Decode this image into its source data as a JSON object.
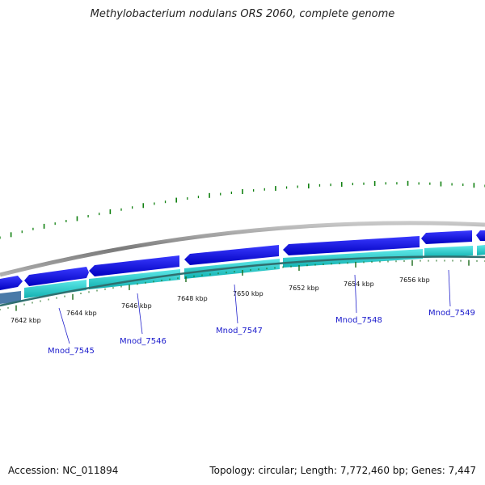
{
  "title": "Methylobacterium nodulans ORS 2060, complete genome",
  "accession": "Accession: NC_011894",
  "topology_summary": "Topology: circular; Length: 7,772,460 bp; Genes: 7,447",
  "colors": {
    "forward_gene": "#1010e0",
    "reverse_gene": "#20c8c8",
    "backbone": "#808080",
    "gc_skew": "#108010",
    "tick": "#1a6a1a",
    "label": "#1a1acc"
  },
  "tick_labels": [
    "7642 kbp",
    "7644 kbp",
    "7646 kbp",
    "7648 kbp",
    "7650 kbp",
    "7652 kbp",
    "7654 kbp",
    "7656 kbp"
  ],
  "gene_labels": [
    "Mnod_7545",
    "Mnod_7546",
    "Mnod_7547",
    "Mnod_7548",
    "Mnod_7549"
  ]
}
